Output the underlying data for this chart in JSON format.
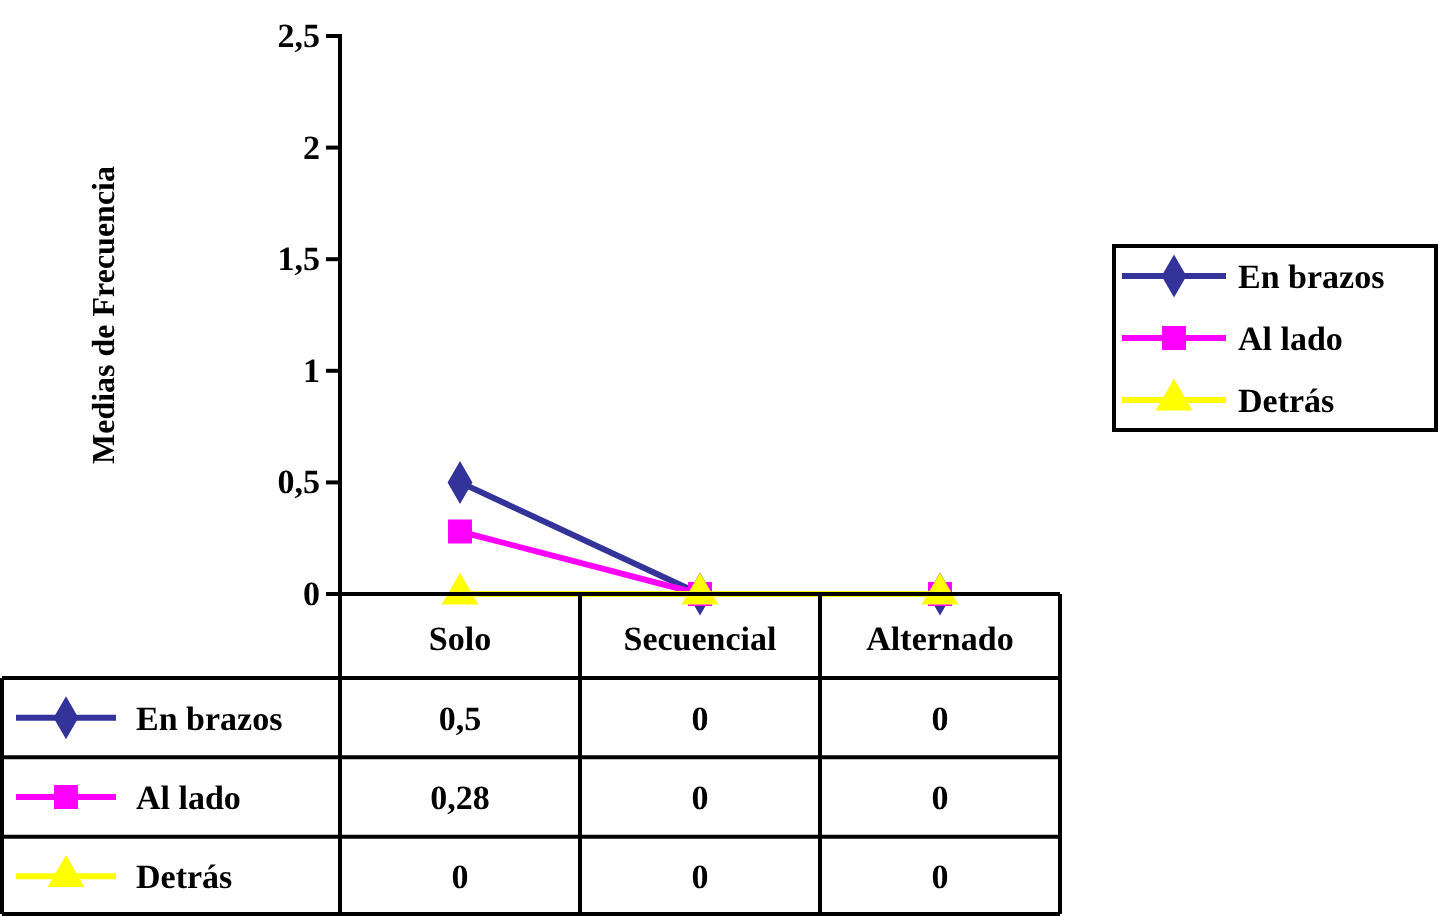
{
  "chart_data": {
    "type": "line",
    "ylabel": "Medias de Frecuencia",
    "categories": [
      "Solo",
      "Secuencial",
      "Alternado"
    ],
    "series": [
      {
        "name": "En brazos",
        "color": "#333399",
        "marker": "diamond",
        "values": [
          0.5,
          0,
          0
        ],
        "value_labels": [
          "0,5",
          "0",
          "0"
        ]
      },
      {
        "name": "Al lado",
        "color": "#ff00ff",
        "marker": "square",
        "values": [
          0.28,
          0,
          0
        ],
        "value_labels": [
          "0,28",
          "0",
          "0"
        ]
      },
      {
        "name": "Detrás",
        "color": "#ffff00",
        "marker": "triangle",
        "values": [
          0,
          0,
          0
        ],
        "value_labels": [
          "0",
          "0",
          "0"
        ]
      }
    ],
    "ylim": [
      0,
      2.5
    ],
    "yticks": [
      0,
      {
        "value": 0.5,
        "label": "0,5"
      },
      1,
      {
        "value": 1.5,
        "label": "1,5"
      },
      2,
      {
        "value": 2.5,
        "label": "2,5"
      }
    ],
    "legend": "right",
    "grid": false
  }
}
